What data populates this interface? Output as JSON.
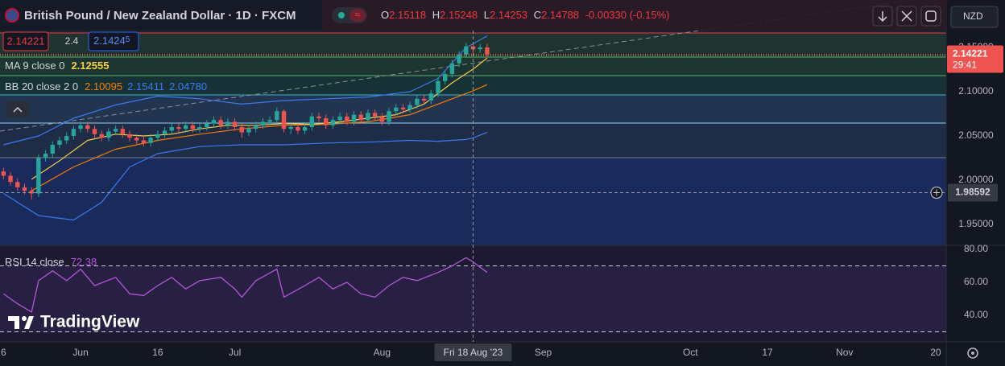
{
  "header": {
    "symbol": "British Pound / New Zealand Dollar · 1D · FXCM",
    "o": "O",
    "h": "H",
    "l": "L",
    "c": "C",
    "change": "-0.00330 (-0.15%)"
  },
  "trade": {
    "spread": "2.4",
    "buy": "2.1424",
    "buy_pip": "5"
  },
  "currency": "NZD",
  "countdown": "29:41",
  "watermark": "TradingView",
  "chart_data": [
    {
      "type": "candlestick",
      "open": [
        2.01,
        2.005,
        1.998,
        1.992,
        1.988,
        1.985,
        2.025,
        2.03,
        2.04,
        2.045,
        2.05,
        2.058,
        2.062,
        2.058,
        2.052,
        2.048,
        2.055,
        2.058,
        2.052,
        2.048,
        2.045,
        2.042,
        2.048,
        2.052,
        2.056,
        2.06,
        2.058,
        2.062,
        2.058,
        2.06,
        2.064,
        2.068,
        2.062,
        2.066,
        2.06,
        2.054,
        2.058,
        2.062,
        2.066,
        2.068,
        2.078,
        2.058,
        2.06,
        2.056,
        2.06,
        2.072,
        2.07,
        2.062,
        2.068,
        2.072,
        2.066,
        2.074,
        2.068,
        2.076,
        2.072,
        2.066,
        2.078,
        2.082,
        2.08,
        2.085,
        2.092,
        2.09,
        2.098,
        2.112,
        2.12,
        2.132,
        2.142,
        2.15118,
        2.14788,
        2.15
      ],
      "high": [
        2.014,
        2.009,
        2.002,
        1.996,
        1.992,
        2.029,
        2.034,
        2.044,
        2.049,
        2.054,
        2.062,
        2.066,
        2.066,
        2.062,
        2.056,
        2.059,
        2.062,
        2.062,
        2.056,
        2.052,
        2.049,
        2.052,
        2.056,
        2.06,
        2.064,
        2.064,
        2.066,
        2.066,
        2.064,
        2.068,
        2.072,
        2.072,
        2.07,
        2.07,
        2.064,
        2.062,
        2.066,
        2.07,
        2.072,
        2.082,
        2.08,
        2.064,
        2.064,
        2.064,
        2.076,
        2.076,
        2.074,
        2.072,
        2.076,
        2.076,
        2.078,
        2.078,
        2.08,
        2.08,
        2.076,
        2.082,
        2.086,
        2.086,
        2.089,
        2.096,
        2.096,
        2.102,
        2.116,
        2.124,
        2.136,
        2.146,
        2.1552,
        2.15248,
        2.154,
        2.154
      ],
      "low": [
        2.001,
        1.994,
        1.988,
        1.984,
        1.978,
        1.981,
        2.021,
        2.026,
        2.036,
        2.041,
        2.046,
        2.054,
        2.054,
        2.048,
        2.044,
        2.044,
        2.051,
        2.048,
        2.044,
        2.041,
        2.038,
        2.038,
        2.044,
        2.048,
        2.052,
        2.054,
        2.054,
        2.054,
        2.054,
        2.056,
        2.06,
        2.058,
        2.058,
        2.056,
        2.048,
        2.05,
        2.054,
        2.058,
        2.062,
        2.064,
        2.054,
        2.052,
        2.052,
        2.052,
        2.056,
        2.066,
        2.058,
        2.058,
        2.064,
        2.062,
        2.062,
        2.064,
        2.064,
        2.068,
        2.062,
        2.062,
        2.074,
        2.076,
        2.076,
        2.081,
        2.086,
        2.086,
        2.094,
        2.108,
        2.116,
        2.128,
        2.138,
        2.14253,
        2.144,
        2.138
      ],
      "close": [
        2.005,
        1.998,
        1.992,
        1.988,
        1.985,
        2.025,
        2.03,
        2.04,
        2.045,
        2.05,
        2.058,
        2.062,
        2.058,
        2.052,
        2.048,
        2.055,
        2.058,
        2.052,
        2.048,
        2.045,
        2.042,
        2.048,
        2.052,
        2.056,
        2.06,
        2.058,
        2.062,
        2.058,
        2.06,
        2.064,
        2.068,
        2.062,
        2.066,
        2.06,
        2.054,
        2.058,
        2.062,
        2.066,
        2.068,
        2.078,
        2.058,
        2.06,
        2.056,
        2.06,
        2.072,
        2.07,
        2.062,
        2.068,
        2.072,
        2.066,
        2.074,
        2.068,
        2.076,
        2.072,
        2.066,
        2.078,
        2.082,
        2.08,
        2.085,
        2.092,
        2.09,
        2.098,
        2.112,
        2.12,
        2.132,
        2.142,
        2.1512,
        2.14788,
        2.15,
        2.14221
      ],
      "up_color": "#26a69a",
      "down_color": "#ef5350",
      "xlim": [
        -0.5,
        134.5
      ],
      "xticks": [
        {
          "value": 0,
          "label": "6"
        },
        {
          "value": 11,
          "label": "Jun"
        },
        {
          "value": 22,
          "label": "16"
        },
        {
          "value": 33,
          "label": "Jul"
        },
        {
          "value": 54,
          "label": "Aug"
        },
        {
          "value": 77,
          "label": "Sep"
        },
        {
          "value": 98,
          "label": "Oct"
        },
        {
          "value": 109,
          "label": "17"
        },
        {
          "value": 120,
          "label": "Nov"
        },
        {
          "value": 133,
          "label": "20"
        }
      ],
      "ylim": [
        1.9264,
        2.2036
      ],
      "yticks": [
        {
          "value": 1.95,
          "label": "1.95000"
        },
        {
          "value": 2.0,
          "label": "2.00000"
        },
        {
          "value": 2.05,
          "label": "2.05000"
        },
        {
          "value": 2.1,
          "label": "2.10000"
        },
        {
          "value": 2.15,
          "label": "2.15000"
        }
      ],
      "overlays": [
        {
          "name": "MA 9 close 0",
          "color": "#f7d046",
          "x": [
            4,
            8,
            12,
            16,
            20,
            24,
            28,
            32,
            36,
            40,
            44,
            48,
            52,
            56,
            60,
            64,
            67,
            69
          ],
          "values": [
            2.001,
            2.022,
            2.045,
            2.052,
            2.05,
            2.052,
            2.058,
            2.062,
            2.062,
            2.064,
            2.063,
            2.066,
            2.07,
            2.074,
            2.086,
            2.11,
            2.12555,
            2.138
          ]
        }
      ],
      "bands": {
        "name": "BB 20 close 2 0",
        "basis": {
          "color": "#f57c00",
          "x": [
            4,
            10,
            16,
            22,
            28,
            34,
            40,
            46,
            52,
            58,
            64,
            67,
            69
          ],
          "values": [
            1.988,
            2.015,
            2.035,
            2.045,
            2.052,
            2.058,
            2.062,
            2.063,
            2.066,
            2.074,
            2.092,
            2.10095,
            2.108
          ]
        },
        "upper": {
          "color": "#3a7bf0",
          "x": [
            0,
            5,
            10,
            16,
            22,
            28,
            34,
            40,
            46,
            52,
            58,
            62,
            66,
            67,
            69
          ],
          "values": [
            2.04,
            2.05,
            2.07,
            2.085,
            2.095,
            2.092,
            2.086,
            2.09,
            2.092,
            2.094,
            2.1,
            2.115,
            2.15,
            2.15411,
            2.163
          ]
        },
        "lower": {
          "color": "#3a7bf0",
          "x": [
            0,
            5,
            10,
            14,
            18,
            22,
            28,
            34,
            40,
            46,
            52,
            58,
            62,
            66,
            67,
            69
          ],
          "values": [
            1.985,
            1.96,
            1.955,
            1.975,
            2.015,
            2.03,
            2.038,
            2.04,
            2.04,
            2.042,
            2.043,
            2.045,
            2.044,
            2.046,
            2.0478,
            2.054
          ],
          "legend_label": "2.04780"
        }
      },
      "crosshair": {
        "x": 67,
        "y": 1.98592,
        "x_label": "Fri 18 Aug '23"
      }
    },
    {
      "type": "line",
      "series": [
        {
          "name": "RSI 14 close",
          "color": "#b455d8",
          "x": [
            0,
            2,
            4,
            5,
            7,
            9,
            11,
            13,
            16,
            18,
            20,
            22,
            24,
            26,
            28,
            31,
            33,
            34,
            36,
            39,
            40,
            43,
            45,
            47,
            49,
            51,
            53,
            55,
            57,
            59,
            62,
            64,
            66,
            67,
            69
          ],
          "values": [
            53,
            47,
            42,
            61,
            67,
            61,
            68,
            58,
            63,
            53,
            52,
            58,
            63,
            56,
            61,
            63,
            56,
            51,
            61,
            68,
            51,
            58,
            63,
            56,
            60,
            53,
            51,
            58,
            63,
            61,
            66,
            70,
            75,
            72.38,
            66
          ]
        }
      ],
      "ylim": [
        23.9,
        82.44
      ],
      "yticks": [
        {
          "value": 40,
          "label": "40.00"
        },
        {
          "value": 60,
          "label": "60.00"
        },
        {
          "value": 80,
          "label": "80.00"
        }
      ],
      "levels": [
        70,
        30
      ]
    }
  ]
}
